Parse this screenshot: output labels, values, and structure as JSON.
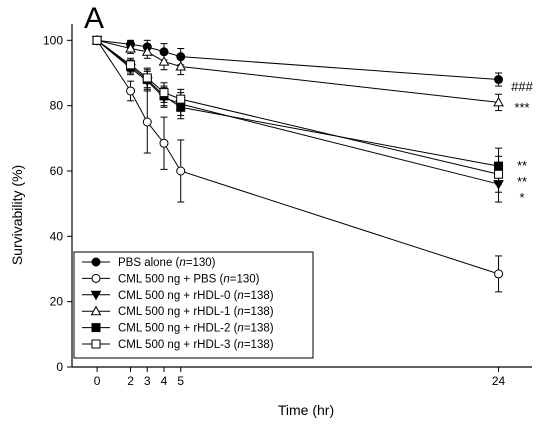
{
  "panel_label": "A",
  "chart_data": {
    "type": "line",
    "xlabel": "Time (hr)",
    "ylabel": "Survivability (%)",
    "xlim": [
      -1.5,
      26
    ],
    "ylim": [
      0,
      105
    ],
    "x_ticks": [
      0,
      2,
      3,
      4,
      5,
      24
    ],
    "y_ticks": [
      0,
      20,
      40,
      60,
      80,
      100
    ],
    "grid": false,
    "legend_position": "bottom-left",
    "x": [
      0,
      2,
      3,
      4,
      5,
      24
    ],
    "series": [
      {
        "name": "PBS alone (n=130)",
        "label_main": "PBS alone (",
        "label_n": "n",
        "label_tail": "=130)",
        "marker": "circle-filled",
        "values": [
          100,
          98.8,
          98,
          96.5,
          95,
          88
        ],
        "errors": [
          0.5,
          1.2,
          2,
          2.5,
          2.5,
          2
        ],
        "annotation": "###"
      },
      {
        "name": "CML 500 ng + PBS (n=130)",
        "label_main": "CML 500 ng + PBS (",
        "label_n": "n",
        "label_tail": "=130)",
        "marker": "circle-open",
        "values": [
          100,
          84.5,
          75,
          68.5,
          60,
          28.5
        ],
        "errors": [
          0.5,
          3,
          9.5,
          8,
          9.5,
          5.5
        ],
        "annotation": ""
      },
      {
        "name": "CML 500 ng + rHDL-0 (n=138)",
        "label_main": "CML 500 ng + rHDL-0 (",
        "label_n": "n",
        "label_tail": "=138)",
        "marker": "triangle-down-filled",
        "values": [
          100,
          91.5,
          87.5,
          82.5,
          80.5,
          56
        ],
        "errors": [
          0.5,
          2,
          3,
          3,
          3.5,
          5.5
        ],
        "annotation": "*"
      },
      {
        "name": "CML 500 ng + rHDL-1 (n=138)",
        "label_main": "CML 500 ng + rHDL-1 (",
        "label_n": "n",
        "label_tail": "=138)",
        "marker": "triangle-up-open",
        "values": [
          100,
          97.5,
          96.5,
          93.5,
          92,
          81
        ],
        "errors": [
          0.5,
          1.5,
          2,
          2.5,
          2.5,
          2.5
        ],
        "annotation": "***"
      },
      {
        "name": "CML 500 ng + rHDL-2 (n=138)",
        "label_main": "CML 500 ng + rHDL-2 (",
        "label_n": "n",
        "label_tail": "=138)",
        "marker": "square-filled",
        "values": [
          100,
          92,
          88,
          83,
          79.5,
          61.5
        ],
        "errors": [
          0.5,
          2,
          3,
          3,
          3.5,
          5.5
        ],
        "annotation": "**"
      },
      {
        "name": "CML 500 ng + rHDL-3 (n=138)",
        "label_main": "CML 500 ng + rHDL-3 (",
        "label_n": "n",
        "label_tail": "=138)",
        "marker": "square-open",
        "values": [
          100,
          92.5,
          88.5,
          84,
          82,
          59
        ],
        "errors": [
          0.5,
          2,
          3,
          3,
          3,
          5.5
        ],
        "annotation": "**"
      }
    ]
  }
}
